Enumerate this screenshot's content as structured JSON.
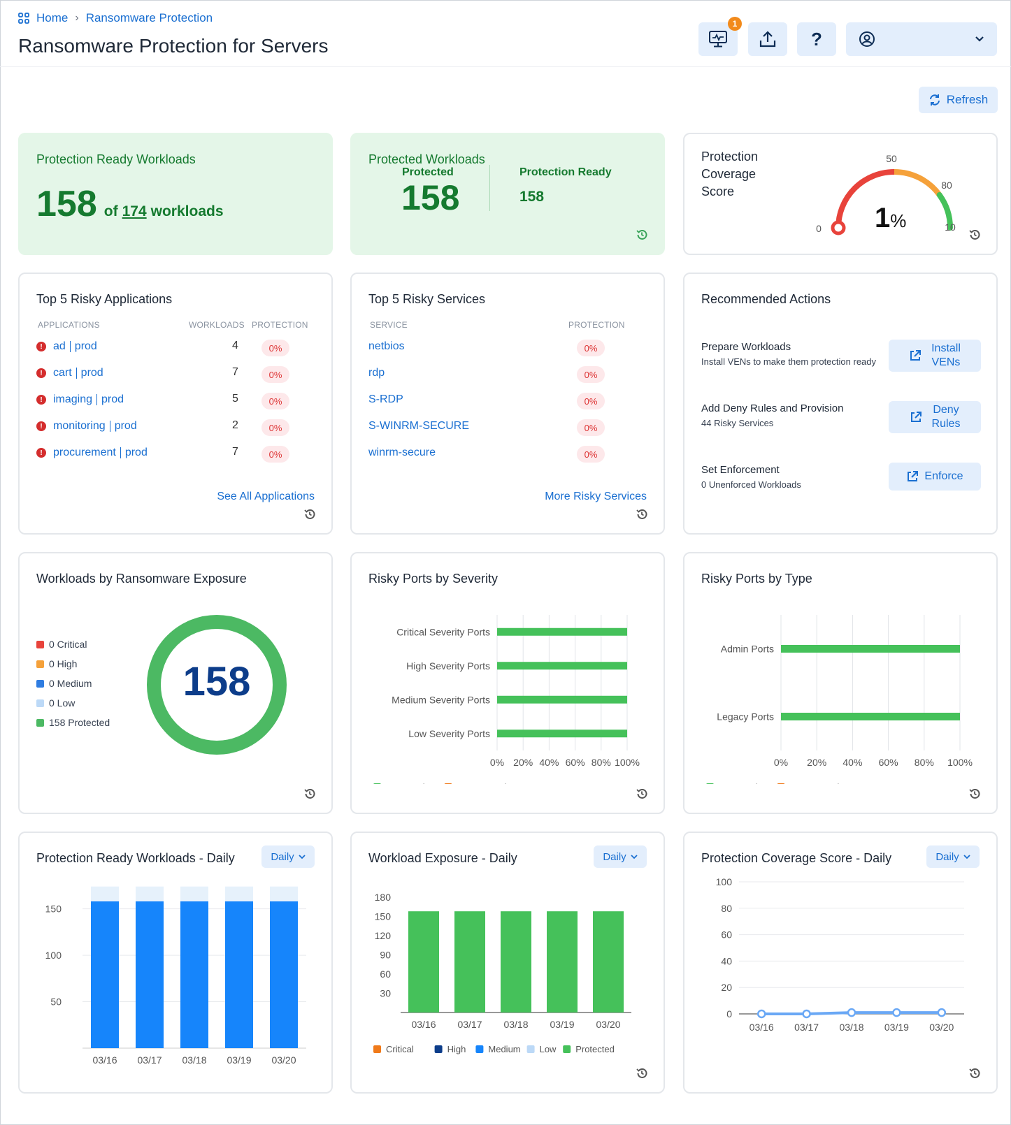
{
  "breadcrumb": {
    "home": "Home",
    "current": "Ransomware Protection"
  },
  "page_title": "Ransomware Protection for Servers",
  "header": {
    "notification_count": "1"
  },
  "refresh_label": "Refresh",
  "cards": {
    "ready": {
      "title": "Protection Ready Workloads",
      "count": "158",
      "of": "of",
      "total": "174",
      "unit": "workloads"
    },
    "protected": {
      "title": "Protected Workloads",
      "protected_label": "Protected",
      "protected_value": "158",
      "ready_label": "Protection Ready",
      "ready_value": "158"
    },
    "score": {
      "title_line1": "Protection",
      "title_line2": "Coverage",
      "title_line3": "Score",
      "value": "1",
      "unit": "%",
      "gauge_labels": [
        "0",
        "50",
        "80",
        "10"
      ],
      "level": 0.01
    },
    "apps": {
      "title": "Top 5 Risky Applications",
      "headers": {
        "applications": "APPLICATIONS",
        "workloads": "WORKLOADS",
        "protection": "PROTECTION"
      },
      "rows": [
        {
          "app": "ad",
          "env": "prod",
          "workloads": "4",
          "protection": "0%"
        },
        {
          "app": "cart",
          "env": "prod",
          "workloads": "7",
          "protection": "0%"
        },
        {
          "app": "imaging",
          "env": "prod",
          "workloads": "5",
          "protection": "0%"
        },
        {
          "app": "monitoring",
          "env": "prod",
          "workloads": "2",
          "protection": "0%"
        },
        {
          "app": "procurement",
          "env": "prod",
          "workloads": "7",
          "protection": "0%"
        }
      ],
      "link": "See All Applications"
    },
    "services": {
      "title": "Top 5 Risky Services",
      "headers": {
        "service": "SERVICE",
        "protection": "PROTECTION"
      },
      "rows": [
        {
          "service": "netbios",
          "protection": "0%"
        },
        {
          "service": "rdp",
          "protection": "0%"
        },
        {
          "service": "S-RDP",
          "protection": "0%"
        },
        {
          "service": "S-WINRM-SECURE",
          "protection": "0%"
        },
        {
          "service": "winrm-secure",
          "protection": "0%"
        }
      ],
      "link": "More Risky Services"
    },
    "actions": {
      "title": "Recommended Actions",
      "items": [
        {
          "title": "Prepare Workloads",
          "sub": "Install VENs to make them protection ready",
          "btn1": "Install",
          "btn2": "VENs"
        },
        {
          "title": "Add Deny Rules and Provision",
          "sub": "44 Risky Services",
          "btn1": "Deny",
          "btn2": "Rules"
        },
        {
          "title": "Set Enforcement",
          "sub": "0 Unenforced Workloads",
          "btn1": "Enforce",
          "btn2": ""
        }
      ]
    },
    "exposure": {
      "title": "Workloads by Ransomware Exposure",
      "center": "158",
      "legend": [
        {
          "label": "0 Critical",
          "color": "#e8433b"
        },
        {
          "label": "0 High",
          "color": "#f5a13a"
        },
        {
          "label": "0 Medium",
          "color": "#2f7de1"
        },
        {
          "label": "0 Low",
          "color": "#bcd9f7"
        },
        {
          "label": "158 Protected",
          "color": "#4cb963"
        }
      ]
    },
    "severity": {
      "title": "Risky Ports by Severity"
    },
    "type": {
      "title": "Risky Ports by Type"
    },
    "ready_daily": {
      "title": "Protection Ready Workloads - Daily",
      "daily": "Daily"
    },
    "exposure_daily": {
      "title": "Workload Exposure - Daily",
      "daily": "Daily"
    },
    "score_daily": {
      "title": "Protection Coverage Score - Daily",
      "daily": "Daily"
    }
  },
  "chart_data": [
    {
      "type": "bar",
      "orientation": "horizontal",
      "title": "Risky Ports by Severity",
      "categories": [
        "Critical Severity Ports",
        "High Severity Ports",
        "Medium Severity Ports",
        "Low Severity Ports"
      ],
      "x_ticks": [
        "0%",
        "20%",
        "40%",
        "60%",
        "80%",
        "100%"
      ],
      "series": [
        {
          "name": "Protected",
          "color": "#45c15a",
          "values": [
            100,
            100,
            100,
            100
          ]
        },
        {
          "name": "Unprotected",
          "color": "#f07a1a",
          "values": [
            0,
            0,
            0,
            0
          ]
        }
      ],
      "xlim": [
        0,
        100
      ]
    },
    {
      "type": "bar",
      "orientation": "horizontal",
      "title": "Risky Ports by Type",
      "categories": [
        "Admin Ports",
        "Legacy Ports"
      ],
      "x_ticks": [
        "0%",
        "20%",
        "40%",
        "60%",
        "80%",
        "100%"
      ],
      "series": [
        {
          "name": "Protected",
          "color": "#45c15a",
          "values": [
            100,
            100
          ]
        },
        {
          "name": "Unprotected",
          "color": "#f07a1a",
          "values": [
            0,
            0
          ]
        }
      ],
      "xlim": [
        0,
        100
      ]
    },
    {
      "type": "bar",
      "title": "Protection Ready Workloads - Daily",
      "categories": [
        "03/16",
        "03/17",
        "03/18",
        "03/19",
        "03/20"
      ],
      "y_ticks": [
        "50",
        "100",
        "150"
      ],
      "series": [
        {
          "name": "",
          "color": "#1685fb",
          "values": [
            158,
            158,
            158,
            158,
            158
          ]
        },
        {
          "name": "",
          "color": "#e6f1fb",
          "values": [
            174,
            174,
            174,
            174,
            174
          ]
        }
      ],
      "ylim": [
        0,
        164
      ]
    },
    {
      "type": "bar",
      "title": "Workload Exposure - Daily",
      "categories": [
        "03/16",
        "03/17",
        "03/18",
        "03/19",
        "03/20"
      ],
      "y_ticks": [
        "30",
        "60",
        "90",
        "120",
        "150",
        "180"
      ],
      "series": [
        {
          "name": "Critical",
          "color": "#f07a1a",
          "values": [
            0,
            0,
            0,
            0,
            0
          ]
        },
        {
          "name": "High",
          "color": "#0d3d8a",
          "values": [
            0,
            0,
            0,
            0,
            0
          ]
        },
        {
          "name": "Medium",
          "color": "#1685fb",
          "values": [
            0,
            0,
            0,
            0,
            0
          ]
        },
        {
          "name": "Low",
          "color": "#bcd9f7",
          "values": [
            0,
            0,
            0,
            0,
            0
          ]
        },
        {
          "name": "Protected",
          "color": "#45c15a",
          "values": [
            158,
            158,
            158,
            158,
            158
          ]
        }
      ],
      "ylim": [
        0,
        180
      ]
    },
    {
      "type": "line",
      "title": "Protection Coverage Score - Daily",
      "categories": [
        "03/16",
        "03/17",
        "03/18",
        "03/19",
        "03/20"
      ],
      "y_ticks": [
        "0",
        "20",
        "40",
        "60",
        "80",
        "100"
      ],
      "series": [
        {
          "name": "",
          "color": "#6aa8f5",
          "values": [
            0,
            0,
            1,
            1,
            1
          ]
        }
      ],
      "ylim": [
        0,
        100
      ]
    }
  ]
}
